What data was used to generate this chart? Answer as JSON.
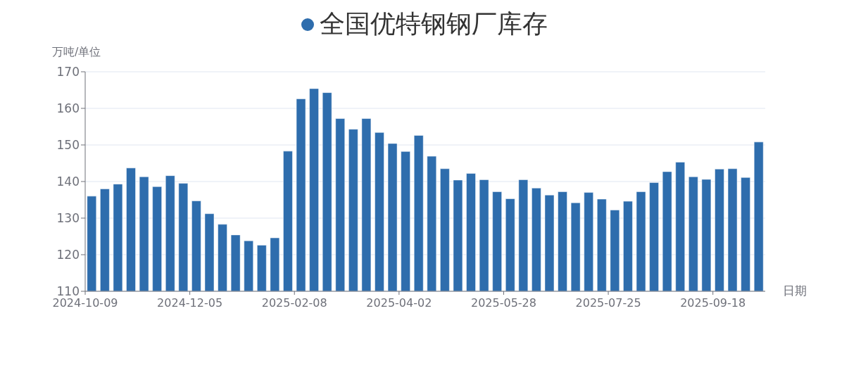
{
  "chart_data": {
    "type": "bar",
    "xlabel": "日期",
    "ylabel": "万吨/单位",
    "categories": [
      "2024-10-09",
      null,
      null,
      null,
      null,
      null,
      null,
      null,
      "2024-12-05",
      null,
      null,
      null,
      null,
      null,
      null,
      null,
      "2025-02-08",
      null,
      null,
      null,
      null,
      null,
      null,
      null,
      "2025-04-02",
      null,
      null,
      null,
      null,
      null,
      null,
      null,
      "2025-05-28",
      null,
      null,
      null,
      null,
      null,
      null,
      null,
      "2025-07-25",
      null,
      null,
      null,
      null,
      null,
      null,
      null,
      "2025-09-18",
      null,
      null,
      null
    ],
    "series": [
      {
        "name": "全国优特钢钢厂库存",
        "color": "#2e6dad",
        "values": [
          136,
          138,
          139.3,
          143.7,
          141.3,
          138.6,
          141.6,
          139.5,
          134.7,
          131.2,
          128.3,
          125.4,
          123.8,
          122.6,
          124.6,
          148.3,
          162.6,
          165.4,
          164.3,
          157.2,
          154.3,
          157.2,
          153.4,
          150.4,
          148.2,
          152.6,
          146.9,
          143.5,
          140.4,
          142.2,
          140.5,
          137.2,
          135.3,
          140.5,
          138.2,
          136.3,
          137.2,
          134.2,
          137,
          135.2,
          132.2,
          134.6,
          137.2,
          139.7,
          142.7,
          145.3,
          141.3,
          140.6,
          143.4,
          143.5,
          141.1,
          150.8
        ]
      }
    ],
    "ylim": [
      110,
      170
    ],
    "yticks": [
      110,
      120,
      130,
      140,
      150,
      160,
      170
    ],
    "grid": "y",
    "legend": "top"
  }
}
